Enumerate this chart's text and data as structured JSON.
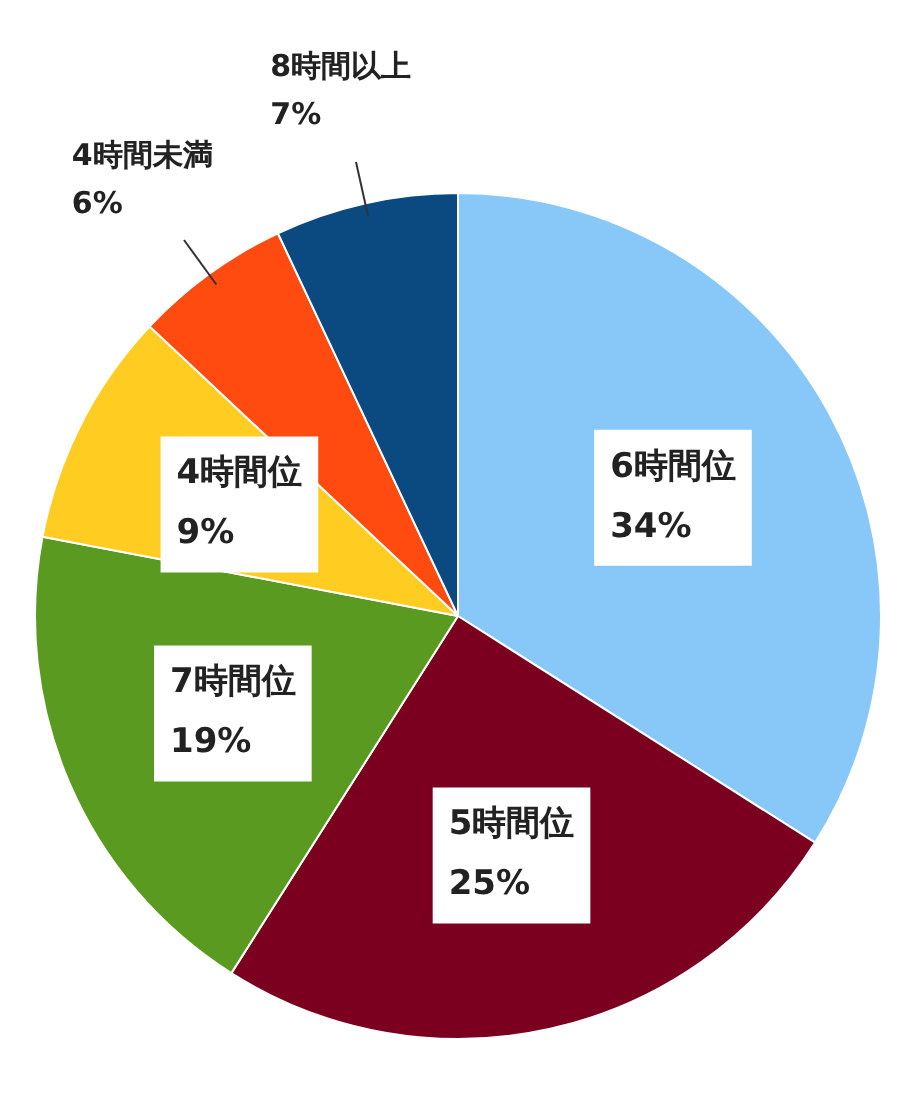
{
  "chart_data": {
    "type": "pie",
    "categories": [
      "6時間位",
      "5時間位",
      "7時間位",
      "4時間位",
      "4時間未満",
      "8時間以上"
    ],
    "values": [
      34,
      25,
      19,
      9,
      6,
      7
    ],
    "value_labels": [
      "34%",
      "25%",
      "19%",
      "9%",
      "6%",
      "7%"
    ],
    "colors": [
      "#87c8f8",
      "#7b0020",
      "#5a9a20",
      "#ffcc22",
      "#ff4a10",
      "#0a4a80"
    ]
  }
}
